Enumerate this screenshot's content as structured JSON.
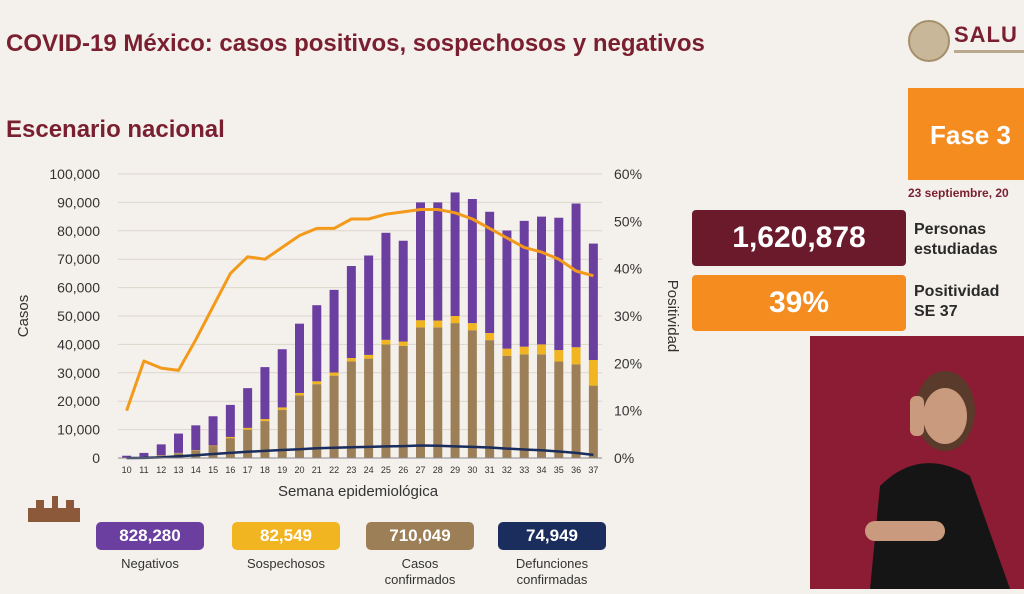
{
  "header": {
    "title": "COVID-19 México: casos positivos, sospechosos y negativos",
    "subtitle": "Escenario nacional",
    "logo_text": "SALU",
    "fase": "Fase 3",
    "fecha": "23 septiembre, 20"
  },
  "stats": {
    "personas_value": "1,620,878",
    "personas_label_1": "Personas",
    "personas_label_2": "estudiadas",
    "positividad_value": "39%",
    "positividad_label_1": "Positividad",
    "positividad_label_2": "SE 37"
  },
  "legend": [
    {
      "value": "828,280",
      "label": "Negativos",
      "label2": "",
      "color": "#6b3fa0"
    },
    {
      "value": "82,549",
      "label": "Sospechosos",
      "label2": "",
      "color": "#f2b522"
    },
    {
      "value": "710,049",
      "label": "Casos",
      "label2": "confirmados",
      "color": "#9c7f57"
    },
    {
      "value": "74,949",
      "label": "Defunciones",
      "label2": "confirmadas",
      "color": "#1a2d5c"
    }
  ],
  "chart_data": {
    "type": "bar",
    "stacked": true,
    "xlabel": "Semana epidemiológica",
    "ylabel": "Casos",
    "y2label": "Positividad",
    "ylim": [
      0,
      100000
    ],
    "y2lim": [
      0,
      60
    ],
    "yticks": [
      "0",
      "10,000",
      "20,000",
      "30,000",
      "40,000",
      "50,000",
      "60,000",
      "70,000",
      "80,000",
      "90,000",
      "100,000"
    ],
    "y2ticks": [
      "0%",
      "10%",
      "20%",
      "30%",
      "40%",
      "50%",
      "60%"
    ],
    "categories": [
      "10",
      "11",
      "12",
      "13",
      "14",
      "15",
      "16",
      "17",
      "18",
      "19",
      "20",
      "21",
      "22",
      "23",
      "24",
      "25",
      "26",
      "27",
      "28",
      "29",
      "30",
      "31",
      "32",
      "33",
      "34",
      "35",
      "36",
      "37"
    ],
    "series": [
      {
        "name": "Casos confirmados",
        "color": "#9c7f57",
        "kind": "bar",
        "values": [
          100,
          400,
          900,
          1700,
          2700,
          4200,
          7000,
          10000,
          13000,
          17000,
          22000,
          26000,
          29000,
          34000,
          35000,
          40000,
          39500,
          46000,
          46000,
          47500,
          45000,
          41500,
          36000,
          36500,
          36500,
          34000,
          33000,
          25500
        ]
      },
      {
        "name": "Sospechosos",
        "color": "#f2b522",
        "kind": "bar",
        "values": [
          0,
          0,
          100,
          100,
          100,
          200,
          400,
          600,
          700,
          800,
          900,
          1000,
          1100,
          1200,
          1300,
          1600,
          1500,
          2500,
          2400,
          2500,
          2500,
          2500,
          2500,
          2700,
          3500,
          4000,
          6000,
          9000
        ]
      },
      {
        "name": "Negativos",
        "color": "#6b3fa0",
        "kind": "bar",
        "values": [
          700,
          1400,
          3800,
          6800,
          8700,
          10300,
          11300,
          14000,
          18300,
          20500,
          24400,
          26800,
          29100,
          32400,
          35000,
          37700,
          35500,
          41500,
          41600,
          43500,
          43700,
          42700,
          41600,
          44300,
          45000,
          46600,
          50600,
          41000
        ]
      },
      {
        "name": "Defunciones",
        "color": "#1a2d5c",
        "kind": "line",
        "values": [
          0,
          50,
          200,
          600,
          1000,
          1400,
          1800,
          2200,
          2500,
          2800,
          3100,
          3400,
          3600,
          3800,
          3900,
          4100,
          4200,
          4400,
          4300,
          4100,
          3900,
          3700,
          3300,
          3000,
          2700,
          2300,
          1800,
          1100
        ]
      },
      {
        "name": "Positividad",
        "color": "#f39a1b",
        "kind": "line",
        "axis": "right",
        "values": [
          10,
          20.5,
          19,
          18.5,
          25,
          32,
          39,
          42.5,
          42,
          44.5,
          47,
          48.5,
          48.5,
          50.5,
          50.5,
          51.5,
          52,
          52.5,
          52.5,
          51.8,
          50.5,
          48.5,
          46.5,
          44.5,
          43.5,
          42,
          39.5,
          38.5
        ]
      }
    ]
  }
}
